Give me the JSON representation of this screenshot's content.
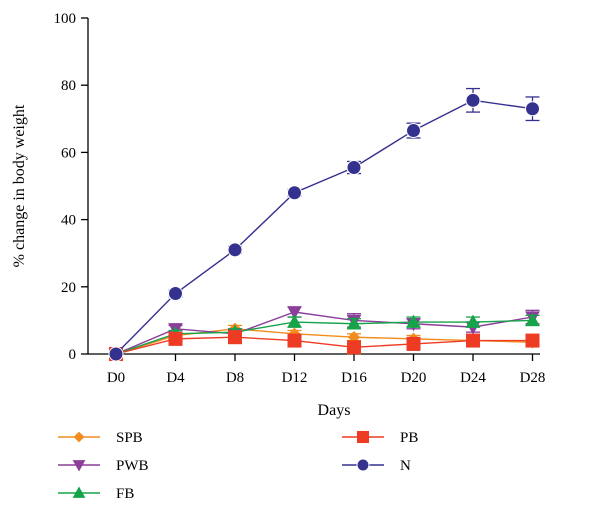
{
  "chart_data": {
    "type": "line",
    "title": "",
    "xlabel": "Days",
    "ylabel": "% change in body weight",
    "categories": [
      "D0",
      "D4",
      "D8",
      "D12",
      "D16",
      "D20",
      "D24",
      "D28"
    ],
    "ylim": [
      0,
      100
    ],
    "yticks": [
      0,
      20,
      40,
      60,
      80,
      100
    ],
    "grid": false,
    "legend_position": "bottom",
    "series": [
      {
        "name": "SPB",
        "marker": "diamond",
        "color": "#F28C1E",
        "values": [
          0,
          5.5,
          7.5,
          6,
          5,
          4.5,
          4,
          3.5
        ],
        "errors": [
          0,
          1,
          1,
          1,
          1,
          1,
          1,
          1
        ]
      },
      {
        "name": "PWB",
        "marker": "triangle-down",
        "color": "#8B3F9A",
        "values": [
          0,
          7.5,
          6,
          12.5,
          10,
          9,
          8,
          11
        ],
        "errors": [
          0,
          1,
          1,
          1.5,
          2,
          1.5,
          1.5,
          2
        ]
      },
      {
        "name": "FB",
        "marker": "triangle-up",
        "color": "#16A34A",
        "values": [
          0,
          6,
          6.5,
          9.5,
          9,
          9.5,
          9.5,
          10
        ],
        "errors": [
          0,
          1,
          1,
          1.5,
          1.5,
          1.5,
          1.5,
          1.5
        ]
      },
      {
        "name": "PB",
        "marker": "square",
        "color": "#EE3B24",
        "values": [
          0,
          4.5,
          5,
          4,
          2,
          3,
          4,
          4
        ],
        "errors": [
          0,
          1,
          1,
          1,
          1,
          1,
          1,
          1
        ]
      },
      {
        "name": "N",
        "marker": "circle",
        "color": "#35318F",
        "values": [
          0,
          18,
          31,
          48,
          55.5,
          66.5,
          75.5,
          73
        ],
        "errors": [
          0,
          1,
          1,
          1,
          1.8,
          2.2,
          3.5,
          3.5
        ]
      }
    ]
  }
}
